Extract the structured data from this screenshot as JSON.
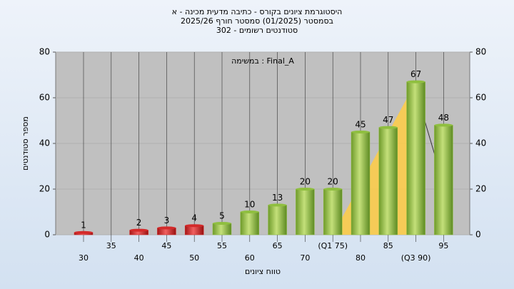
{
  "chart_data": {
    "type": "bar",
    "title": "היסטוגרמת ציונים בקורס - כתיבה מדעית מכינה - א",
    "subtitle": "בסמסטר  (01/2025)  סמסטר חורף 2025/26",
    "subtitle2": "סטודנטים רשומים - 302",
    "annotation": "במשימה : Final_A",
    "x_label": "טווח ציונים",
    "y_label": "מספר סטודנטים",
    "categories": [
      "30",
      "35",
      "40",
      "45",
      "50",
      "55",
      "60",
      "65",
      "70",
      "(Q1 75)",
      "80",
      "85",
      "(Q3 90)",
      "95"
    ],
    "values": [
      1,
      null,
      2,
      3,
      4,
      5,
      10,
      13,
      20,
      20,
      45,
      47,
      67,
      48
    ],
    "colors": [
      "#d42a2a",
      "#d42a2a",
      "#d42a2a",
      "#d42a2a",
      "#d42a2a",
      "#8fbf3f",
      "#8fbf3f",
      "#8fbf3f",
      "#8fbf3f",
      "#8fbf3f",
      "#8fbf3f",
      "#8fbf3f",
      "#8fbf3f",
      "#8fbf3f"
    ],
    "ylim": [
      0,
      80
    ],
    "yticks": [
      0,
      20,
      40,
      60,
      80
    ],
    "y2lim": [
      0,
      80
    ],
    "y2ticks": [
      0,
      20,
      40,
      60,
      80
    ],
    "grid": true
  }
}
